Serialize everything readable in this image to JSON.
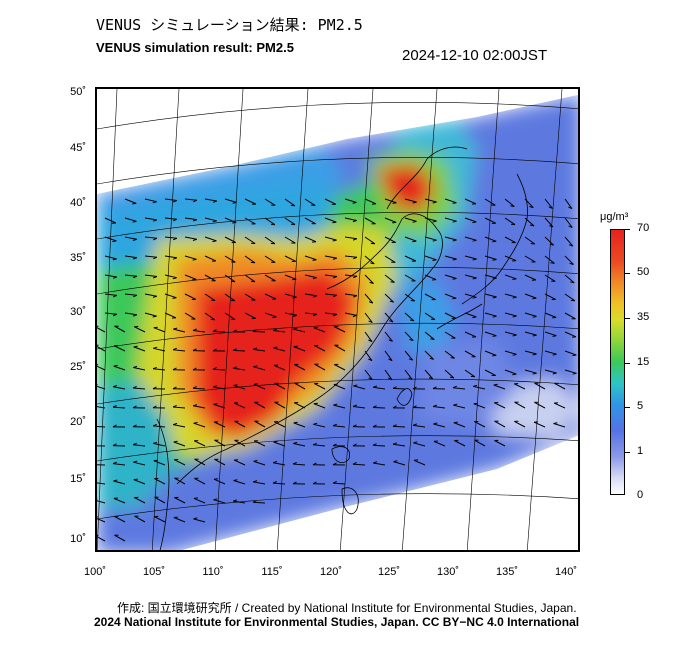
{
  "title_jp": "VENUS シミュレーション結果: PM2.5",
  "title_en": "VENUS simulation result: PM2.5",
  "timestamp": "2024-12-10 02:00JST",
  "axes": {
    "lat_labels": [
      "50˚",
      "45˚",
      "40˚",
      "35˚",
      "30˚",
      "25˚",
      "20˚",
      "15˚",
      "10˚"
    ],
    "lon_labels": [
      "100˚",
      "105˚",
      "110˚",
      "115˚",
      "120˚",
      "125˚",
      "130˚",
      "135˚",
      "140˚"
    ]
  },
  "colorbar": {
    "unit": "μg/m³",
    "ticks": [
      "70",
      "50",
      "35",
      "15",
      "5",
      "1",
      "0"
    ],
    "colors": [
      "#ffffff",
      "#d8dcf4",
      "#8c9ae8",
      "#5573e6",
      "#2f95e6",
      "#2dc6c4",
      "#3cc85a",
      "#8cd63a",
      "#d8dc2a",
      "#f0c028",
      "#f08a28",
      "#ec4a20",
      "#e6231e"
    ]
  },
  "credit_line1": "作成: 国立環境研究所 / Created by National Institute for Environmental Studies, Japan.",
  "credit_line2": "2024 National Institute for Environmental Studies, Japan. CC BY−NC 4.0 International"
}
